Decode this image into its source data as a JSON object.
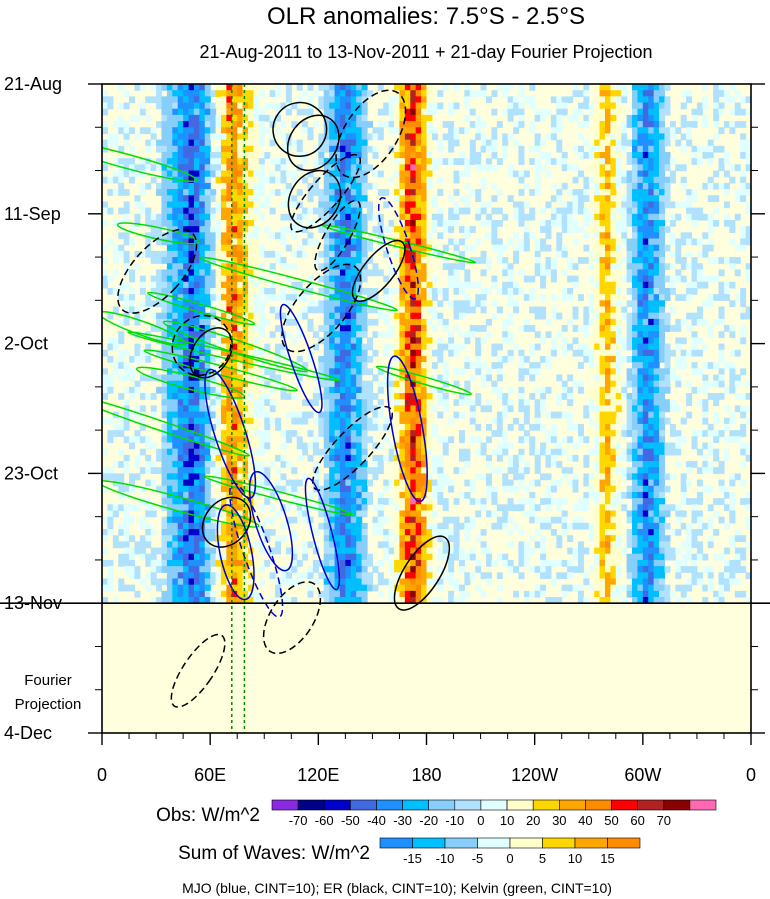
{
  "chart_data": {
    "type": "heatmap",
    "title": "OLR anomalies: 7.5°S - 2.5°S",
    "subtitle": "21-Aug-2011 to 13-Nov-2011 + 21-day Fourier Projection",
    "y_tick_labels": [
      "21-Aug",
      "11-Sep",
      "2-Oct",
      "23-Oct",
      "13-Nov",
      "4-Dec"
    ],
    "y_tick_days": [
      0,
      21,
      42,
      63,
      84,
      105
    ],
    "x_tick_labels": [
      "0",
      "60E",
      "120E",
      "180",
      "120W",
      "60W",
      "0"
    ],
    "x_tick_lon": [
      0,
      60,
      120,
      180,
      240,
      300,
      360
    ],
    "xlim": [
      0,
      360
    ],
    "ylim_days": [
      0,
      105
    ],
    "projection_start_day": 84,
    "projection_label": [
      "Fourier",
      "Projection"
    ],
    "grid": false,
    "obs_colorbar": {
      "label": "Obs: W/m^2",
      "levels": [
        "-70",
        "-60",
        "-50",
        "-40",
        "-30",
        "-20",
        "-10",
        "0",
        "10",
        "20",
        "30",
        "40",
        "50",
        "60",
        "70"
      ],
      "colors": [
        "#8a2be2",
        "#00008b",
        "#0000cd",
        "#4169e1",
        "#1e90ff",
        "#00bfff",
        "#87cefa",
        "#b0e2ff",
        "#e0ffff",
        "#ffffcc",
        "#ffd700",
        "#ffa500",
        "#ff8c00",
        "#ff0000",
        "#b22222",
        "#8b0000",
        "#ff69b4"
      ]
    },
    "waves_colorbar": {
      "label": "Sum of Waves: W/m^2",
      "levels": [
        "-15",
        "-10",
        "-5",
        "0",
        "5",
        "10",
        "15"
      ],
      "colors": [
        "#1e90ff",
        "#00bfff",
        "#87cefa",
        "#e0ffff",
        "#ffffcc",
        "#ffd700",
        "#ffa500",
        "#ff8c00"
      ]
    },
    "footer": "MJO (blue, CINT=10); ER (black, CINT=10); Kelvin (green, CINT=10)",
    "series": [
      {
        "name": "MJO",
        "color": "#0000cc"
      },
      {
        "name": "ER",
        "color": "#000000"
      },
      {
        "name": "Kelvin",
        "color": "#00dd00"
      }
    ],
    "convective_bands": [
      {
        "lon_start": 30,
        "lon_end": 70,
        "day_start": 0,
        "day_end": 84,
        "sign": -1,
        "amp": 45
      },
      {
        "lon_start": 55,
        "lon_end": 90,
        "day_start": 0,
        "day_end": 84,
        "sign": 1,
        "amp": 40
      },
      {
        "lon_start": 120,
        "lon_end": 150,
        "day_start": 0,
        "day_end": 84,
        "sign": -1,
        "amp": 40
      },
      {
        "lon_start": 160,
        "lon_end": 185,
        "day_start": 0,
        "day_end": 84,
        "sign": 1,
        "amp": 55
      },
      {
        "lon_start": 290,
        "lon_end": 315,
        "day_start": 0,
        "day_end": 84,
        "sign": -1,
        "amp": 40
      },
      {
        "lon_start": 270,
        "lon_end": 290,
        "day_start": 0,
        "day_end": 84,
        "sign": 1,
        "amp": 30
      }
    ],
    "mjo_dashed_lon": [
      72,
      79
    ]
  }
}
